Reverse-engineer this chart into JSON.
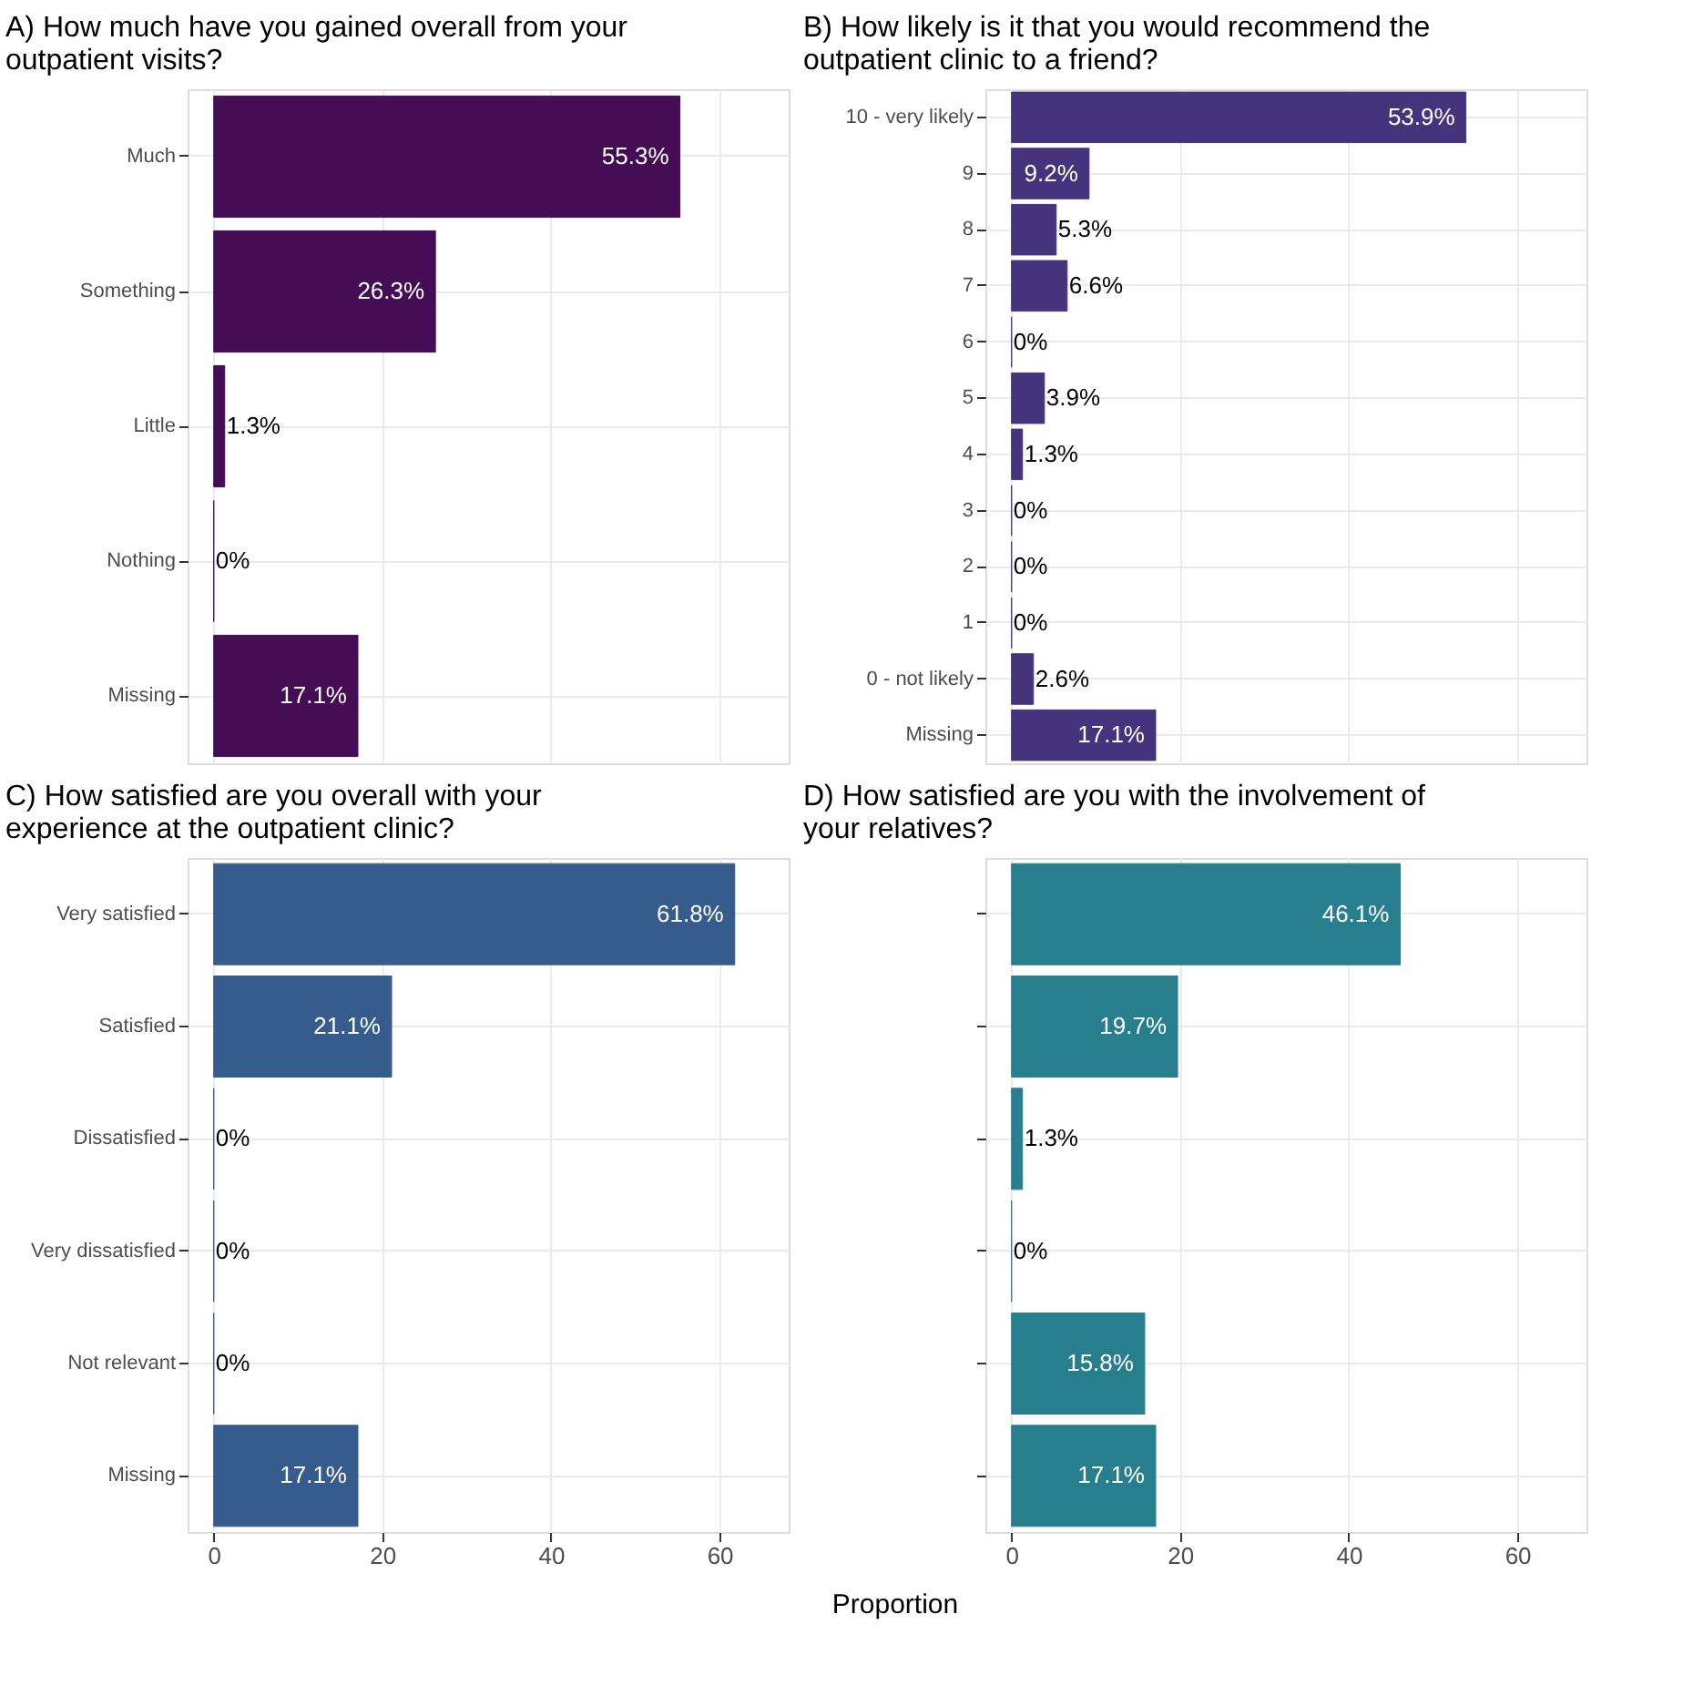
{
  "chart_data": [
    {
      "type": "bar",
      "orientation": "horizontal",
      "title": "A) How much have you gained overall from your outpatient visits?",
      "categories": [
        "Much",
        "Something",
        "Little",
        "Nothing",
        "Missing"
      ],
      "values": [
        55.3,
        26.3,
        1.3,
        0,
        17.1
      ],
      "value_labels": [
        "55.3%",
        "26.3%",
        "1.3%",
        "0%",
        "17.1%"
      ],
      "color": "#440d54",
      "xlim": [
        -3.1,
        68.2
      ],
      "xticks": [
        0,
        20,
        40,
        60
      ],
      "grid": true,
      "tick_labels": "y"
    },
    {
      "type": "bar",
      "orientation": "horizontal",
      "title": "B) How likely is it that you would recommend the outpatient clinic to a friend?",
      "categories": [
        "10 - very likely",
        "9",
        "8",
        "7",
        "6",
        "5",
        "4",
        "3",
        "2",
        "1",
        "0 - not likely",
        "Missing"
      ],
      "values": [
        53.9,
        9.2,
        5.3,
        6.6,
        0,
        3.9,
        1.3,
        0,
        0,
        0,
        2.6,
        17.1
      ],
      "value_labels": [
        "53.9%",
        "9.2%",
        "5.3%",
        "6.6%",
        "0%",
        "3.9%",
        "1.3%",
        "0%",
        "0%",
        "0%",
        "2.6%",
        "17.1%"
      ],
      "color": "#46337e",
      "xlim": [
        -3.1,
        68.2
      ],
      "xticks": [
        0,
        20,
        40,
        60
      ],
      "grid": true,
      "tick_labels": "y"
    },
    {
      "type": "bar",
      "orientation": "horizontal",
      "title": "C) How satisfied are you overall with your experience at the outpatient clinic?",
      "categories": [
        "Very satisfied",
        "Satisfied",
        "Dissatisfied",
        "Very dissatisfied",
        "Not relevant",
        "Missing"
      ],
      "values": [
        61.8,
        21.1,
        0,
        0,
        0,
        17.1
      ],
      "value_labels": [
        "61.8%",
        "21.1%",
        "0%",
        "0%",
        "0%",
        "17.1%"
      ],
      "color": "#365c8d",
      "xlim": [
        -3.1,
        68.2
      ],
      "xticks": [
        0,
        20,
        40,
        60
      ],
      "grid": true
    },
    {
      "type": "bar",
      "orientation": "horizontal",
      "title": "D) How satisfied are you with the involvement of your relatives?",
      "xlabel": "Proportion",
      "categories": [
        "Very satisfied",
        "Satisfied",
        "Dissatisfied",
        "Very dissatisfied",
        "Not relevant",
        "Missing"
      ],
      "values": [
        46.1,
        19.7,
        1.3,
        0,
        15.8,
        17.1
      ],
      "value_labels": [
        "46.1%",
        "19.7%",
        "1.3%",
        "0%",
        "15.8%",
        "17.1%"
      ],
      "color": "#277f8e",
      "xlim": [
        -3.1,
        68.2
      ],
      "xticks": [
        0,
        20,
        40,
        60
      ],
      "grid": true,
      "tick_labels": "x"
    }
  ]
}
